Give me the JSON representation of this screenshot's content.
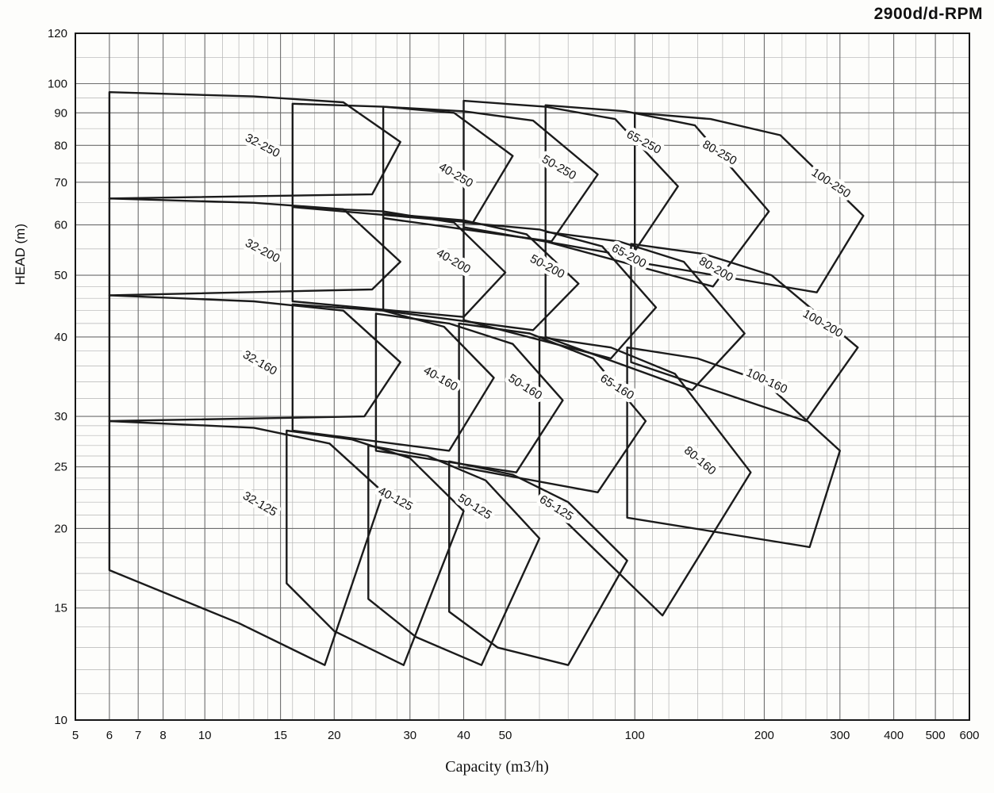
{
  "page": {
    "title": "2900d/d-RPM"
  },
  "chart_data": {
    "type": "line",
    "title": "2900d/d-RPM",
    "xlabel": "Capacity (m3/h)",
    "ylabel": "HEAD (m)",
    "x_scale": "log",
    "y_scale": "log",
    "x_range": [
      5,
      600
    ],
    "y_range": [
      10,
      120
    ],
    "grid": "on",
    "x_ticks": [
      5,
      6,
      7,
      8,
      10,
      15,
      20,
      30,
      40,
      50,
      100,
      200,
      300,
      400,
      500,
      600
    ],
    "x_minor": [
      9,
      11,
      12,
      13,
      14,
      16,
      18,
      22,
      25,
      28,
      35,
      45,
      60,
      70,
      80,
      90,
      110,
      120,
      140,
      160,
      180,
      220,
      250,
      280,
      350,
      450,
      550
    ],
    "y_ticks": [
      10,
      15,
      20,
      25,
      30,
      40,
      50,
      60,
      70,
      80,
      90,
      100,
      120
    ],
    "y_minor": [
      11,
      12,
      13,
      14,
      16,
      17,
      18,
      19,
      21,
      22,
      23,
      24,
      26,
      27,
      28,
      29,
      32,
      34,
      36,
      38,
      42,
      44,
      46,
      48,
      55,
      65,
      75,
      85,
      95,
      110
    ],
    "envelopes": [
      {
        "label": "32-250",
        "angle": 28,
        "label_at": [
          13.5,
          79
        ],
        "points": [
          [
            6,
            97
          ],
          [
            13,
            95.5
          ],
          [
            21,
            93.5
          ],
          [
            28.5,
            81
          ],
          [
            24.5,
            67
          ],
          [
            6,
            66
          ]
        ]
      },
      {
        "label": "40-250",
        "angle": 30,
        "label_at": [
          38,
          71
        ],
        "points": [
          [
            16,
            93
          ],
          [
            26,
            92
          ],
          [
            38,
            90
          ],
          [
            52,
            77
          ],
          [
            42,
            60.5
          ],
          [
            16,
            64
          ]
        ]
      },
      {
        "label": "50-250",
        "angle": 30,
        "label_at": [
          66,
          73
        ],
        "points": [
          [
            26,
            92
          ],
          [
            40,
            90.5
          ],
          [
            58,
            87.5
          ],
          [
            82,
            72
          ],
          [
            64,
            56.5
          ],
          [
            26,
            61.5
          ]
        ]
      },
      {
        "label": "65-250",
        "angle": 28,
        "label_at": [
          104,
          80
        ],
        "points": [
          [
            40,
            94
          ],
          [
            62,
            92
          ],
          [
            90,
            88
          ],
          [
            126,
            69
          ],
          [
            98,
            53.5
          ],
          [
            40,
            59.5
          ]
        ]
      },
      {
        "label": "80-250",
        "angle": 30,
        "label_at": [
          156,
          77
        ],
        "points": [
          [
            62,
            92.5
          ],
          [
            95,
            90.5
          ],
          [
            138,
            86
          ],
          [
            205,
            63
          ],
          [
            152,
            48
          ],
          [
            62,
            56.5
          ]
        ]
      },
      {
        "label": "100-250",
        "angle": 33,
        "label_at": [
          283,
          69
        ],
        "points": [
          [
            100,
            90
          ],
          [
            150,
            88
          ],
          [
            218,
            83
          ],
          [
            340,
            62
          ],
          [
            265,
            47
          ],
          [
            100,
            52.5
          ]
        ]
      },
      {
        "label": "32-200",
        "angle": 28,
        "label_at": [
          13.5,
          54
        ],
        "points": [
          [
            6,
            66
          ],
          [
            13,
            65
          ],
          [
            21,
            63.5
          ],
          [
            28.5,
            52.5
          ],
          [
            24.5,
            47.5
          ],
          [
            6,
            46.5
          ]
        ]
      },
      {
        "label": "40-200",
        "angle": 30,
        "label_at": [
          37.5,
          52
        ],
        "points": [
          [
            16,
            64
          ],
          [
            26,
            63
          ],
          [
            38,
            60.5
          ],
          [
            50,
            50.5
          ],
          [
            40,
            43
          ],
          [
            16,
            45.5
          ]
        ]
      },
      {
        "label": "50-200",
        "angle": 28,
        "label_at": [
          62,
          51
        ],
        "points": [
          [
            26,
            62.5
          ],
          [
            40,
            61
          ],
          [
            56,
            58
          ],
          [
            74,
            48.5
          ],
          [
            58,
            41
          ],
          [
            26,
            44
          ]
        ]
      },
      {
        "label": "65-200",
        "angle": 28,
        "label_at": [
          96,
          53
        ],
        "points": [
          [
            40,
            60.5
          ],
          [
            60,
            59
          ],
          [
            84,
            55.5
          ],
          [
            112,
            44.5
          ],
          [
            88,
            37
          ],
          [
            40,
            42.5
          ]
        ]
      },
      {
        "label": "80-200",
        "angle": 30,
        "label_at": [
          153,
          50.5
        ],
        "points": [
          [
            62,
            58.5
          ],
          [
            92,
            56.5
          ],
          [
            130,
            52.5
          ],
          [
            180,
            40.5
          ],
          [
            136,
            33
          ],
          [
            62,
            40
          ]
        ]
      },
      {
        "label": "100-200",
        "angle": 30,
        "label_at": [
          271,
          41.5
        ],
        "points": [
          [
            98,
            56
          ],
          [
            145,
            54
          ],
          [
            208,
            50
          ],
          [
            330,
            38.5
          ],
          [
            250,
            29.5
          ],
          [
            98,
            36.5
          ]
        ]
      },
      {
        "label": "32-160",
        "angle": 30,
        "label_at": [
          13.3,
          36
        ],
        "points": [
          [
            6,
            46.5
          ],
          [
            13,
            45.5
          ],
          [
            21,
            44
          ],
          [
            28.5,
            36.5
          ],
          [
            23.5,
            30
          ],
          [
            6,
            29.5
          ]
        ]
      },
      {
        "label": "40-160",
        "angle": 30,
        "label_at": [
          35,
          34
        ],
        "points": [
          [
            16,
            45
          ],
          [
            26,
            44
          ],
          [
            36,
            41.5
          ],
          [
            47,
            34.5
          ],
          [
            37,
            26.5
          ],
          [
            16,
            28.5
          ]
        ]
      },
      {
        "label": "50-160",
        "angle": 32,
        "label_at": [
          55,
          33
        ],
        "points": [
          [
            25,
            43.5
          ],
          [
            37,
            42
          ],
          [
            52,
            39
          ],
          [
            68,
            31.8
          ],
          [
            53,
            24.5
          ],
          [
            25,
            26.5
          ]
        ]
      },
      {
        "label": "65-160",
        "angle": 32,
        "label_at": [
          90,
          33
        ],
        "points": [
          [
            39,
            42
          ],
          [
            57,
            40.5
          ],
          [
            80,
            37
          ],
          [
            106,
            29.5
          ],
          [
            82,
            22.8
          ],
          [
            39,
            25
          ]
        ]
      },
      {
        "label": "80-160",
        "angle": 40,
        "label_at": [
          140,
          25.3
        ],
        "points": [
          [
            60,
            40
          ],
          [
            88,
            38.5
          ],
          [
            124,
            35
          ],
          [
            186,
            24.5
          ],
          [
            116,
            14.6
          ],
          [
            60,
            22.5
          ]
        ]
      },
      {
        "label": "100-160",
        "angle": 25,
        "label_at": [
          201,
          33.7
        ],
        "points": [
          [
            96,
            38.5
          ],
          [
            140,
            37
          ],
          [
            200,
            34
          ],
          [
            300,
            26.5
          ],
          [
            255,
            18.7
          ],
          [
            96,
            20.8
          ]
        ]
      },
      {
        "label": "32-125",
        "angle": 30,
        "label_at": [
          13.3,
          21.6
        ],
        "points": [
          [
            6,
            29.5
          ],
          [
            13,
            28.8
          ],
          [
            19.5,
            27.2
          ],
          [
            26,
            22.8
          ],
          [
            19,
            12.2
          ],
          [
            12,
            14.2
          ],
          [
            6,
            17.2
          ]
        ]
      },
      {
        "label": "40-125",
        "angle": 28,
        "label_at": [
          27.5,
          22
        ],
        "points": [
          [
            15.5,
            28.5
          ],
          [
            22,
            27.6
          ],
          [
            30,
            25.8
          ],
          [
            40,
            21.3
          ],
          [
            29,
            12.2
          ],
          [
            20,
            13.8
          ],
          [
            15.5,
            16.4
          ]
        ]
      },
      {
        "label": "50-125",
        "angle": 32,
        "label_at": [
          42,
          21.4
        ],
        "points": [
          [
            24,
            27
          ],
          [
            33,
            26
          ],
          [
            45,
            23.8
          ],
          [
            60,
            19.3
          ],
          [
            44,
            12.2
          ],
          [
            31,
            13.5
          ],
          [
            24,
            15.5
          ]
        ]
      },
      {
        "label": "65-125",
        "angle": 32,
        "label_at": [
          65,
          21.3
        ],
        "points": [
          [
            37,
            25.5
          ],
          [
            52,
            24.3
          ],
          [
            70,
            22
          ],
          [
            96,
            17.8
          ],
          [
            70,
            12.2
          ],
          [
            48,
            13
          ],
          [
            37,
            14.8
          ]
        ]
      }
    ]
  }
}
